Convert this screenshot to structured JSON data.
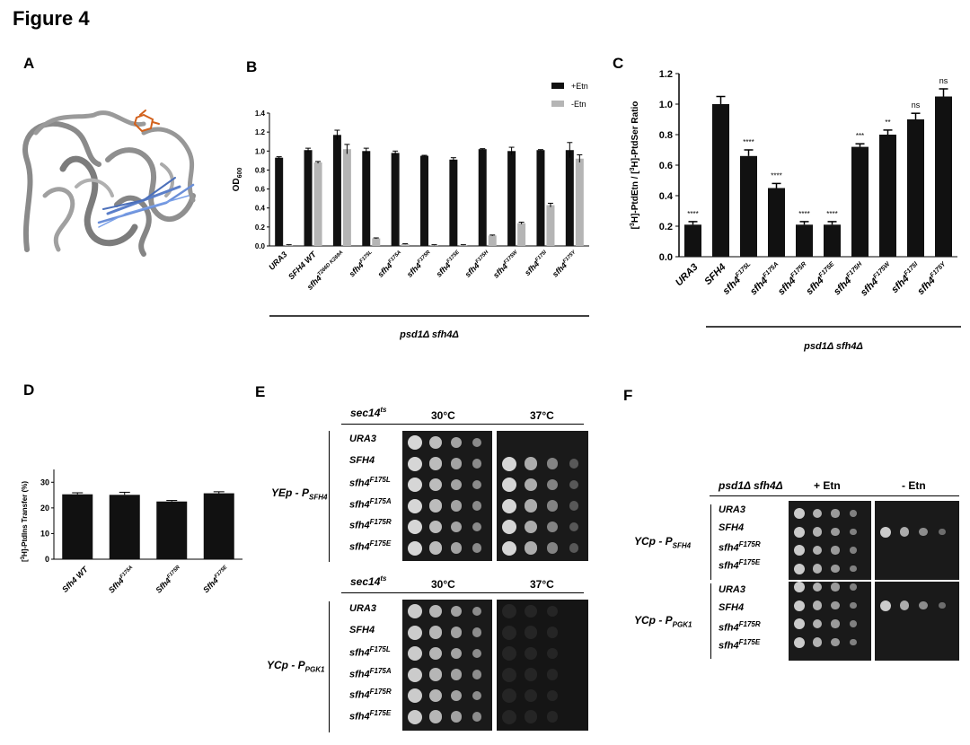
{
  "figure": {
    "title": "Figure 4"
  },
  "panels": {
    "A": {
      "letter": "A"
    },
    "B": {
      "letter": "B",
      "ylabel_main": "OD",
      "ylabel_sub": "600",
      "legend": [
        "+Etn",
        "-Etn"
      ],
      "tick_labels": [
        "0.0",
        "0.2",
        "0.4",
        "0.6",
        "0.8",
        "1.0",
        "1.2",
        "1.4"
      ],
      "strain_label": "psd1Δ sfh4Δ"
    },
    "C": {
      "letter": "C",
      "ylabel_part1": "[",
      "ylabel_sup1": "3",
      "ylabel_part2": "H]-PtdEtn / [",
      "ylabel_sup2": "3",
      "ylabel_part3": "H]-PtdSer Ratio",
      "tick_labels": [
        "0.0",
        "0.2",
        "0.4",
        "0.6",
        "0.8",
        "1.0",
        "1.2"
      ],
      "strain_label": "psd1Δ sfh4Δ"
    },
    "D": {
      "letter": "D",
      "ylabel_pre": "[",
      "ylabel_sup": "3",
      "ylabel_post": "H]-PtdIns Transfer (%)",
      "tick_labels": [
        "0",
        "10",
        "20",
        "30"
      ]
    },
    "E": {
      "letter": "E",
      "header_strain": "sec14",
      "header_strain_sup": "ts",
      "temp_30": "30°C",
      "temp_37": "37°C",
      "group1": {
        "label": "YEp - P",
        "sub": "SFH4",
        "rows": [
          {
            "base": "URA3",
            "sup": ""
          },
          {
            "base": "SFH4",
            "sup": ""
          },
          {
            "base": "sfh4",
            "sup": "F175L"
          },
          {
            "base": "sfh4",
            "sup": "F175A"
          },
          {
            "base": "sfh4",
            "sup": "F175R"
          },
          {
            "base": "sfh4",
            "sup": "F175E"
          }
        ]
      },
      "group2": {
        "label": "YCp - P",
        "sub": "PGK1",
        "rows": [
          {
            "base": "URA3",
            "sup": ""
          },
          {
            "base": "SFH4",
            "sup": ""
          },
          {
            "base": "sfh4",
            "sup": "F175L"
          },
          {
            "base": "sfh4",
            "sup": "F175A"
          },
          {
            "base": "sfh4",
            "sup": "F175R"
          },
          {
            "base": "sfh4",
            "sup": "F175E"
          }
        ]
      }
    },
    "F": {
      "letter": "F",
      "header_strain": "psd1Δ sfh4Δ",
      "col_plus": "+ Etn",
      "col_minus": "- Etn",
      "group1": {
        "label": "YCp - P",
        "sub": "SFH4",
        "rows": [
          {
            "base": "URA3",
            "sup": ""
          },
          {
            "base": "SFH4",
            "sup": ""
          },
          {
            "base": "sfh4",
            "sup": "F175R"
          },
          {
            "base": "sfh4",
            "sup": "F175E"
          }
        ]
      },
      "group2": {
        "label": "YCp - P",
        "sub": "PGK1",
        "rows": [
          {
            "base": "URA3",
            "sup": ""
          },
          {
            "base": "SFH4",
            "sup": ""
          },
          {
            "base": "sfh4",
            "sup": "F175R"
          },
          {
            "base": "sfh4",
            "sup": "F175E"
          }
        ]
      }
    }
  },
  "chart_data": [
    {
      "panel": "B",
      "type": "bar",
      "ylabel": "OD600",
      "ylim": [
        0,
        1.4
      ],
      "legend_position": "top-right",
      "categories": [
        {
          "base": "URA3",
          "sup": ""
        },
        {
          "base": "SFH4 WT",
          "sup": ""
        },
        {
          "base": "sfh4",
          "sup": "T266D K269A"
        },
        {
          "base": "sfh4",
          "sup": "F175L"
        },
        {
          "base": "sfh4",
          "sup": "F175A"
        },
        {
          "base": "sfh4",
          "sup": "F175R"
        },
        {
          "base": "sfh4",
          "sup": "F175E"
        },
        {
          "base": "sfh4",
          "sup": "F175H"
        },
        {
          "base": "sfh4",
          "sup": "F175W"
        },
        {
          "base": "sfh4",
          "sup": "F175I"
        },
        {
          "base": "sfh4",
          "sup": "F175Y"
        }
      ],
      "series": [
        {
          "name": "+Etn",
          "color": "#111111",
          "values": [
            0.93,
            1.01,
            1.17,
            1.0,
            0.98,
            0.95,
            0.91,
            1.02,
            1.0,
            1.01,
            1.01
          ],
          "errors": [
            0.01,
            0.02,
            0.05,
            0.03,
            0.02,
            0.005,
            0.02,
            0.005,
            0.04,
            0.005,
            0.08
          ]
        },
        {
          "name": "-Etn",
          "color": "#b5b5b5",
          "values": [
            0.01,
            0.88,
            1.02,
            0.08,
            0.02,
            0.01,
            0.01,
            0.11,
            0.24,
            0.43,
            0.92
          ],
          "errors": [
            0.003,
            0.01,
            0.05,
            0.005,
            0.003,
            0.003,
            0.003,
            0.005,
            0.01,
            0.02,
            0.04
          ]
        }
      ]
    },
    {
      "panel": "C",
      "type": "bar",
      "ylabel": "[3H]-PtdEtn / [3H]-PtdSer Ratio",
      "ylim": [
        0,
        1.2
      ],
      "categories": [
        {
          "base": "URA3",
          "sup": ""
        },
        {
          "base": "SFH4",
          "sup": ""
        },
        {
          "base": "sfh4",
          "sup": "F175L"
        },
        {
          "base": "sfh4",
          "sup": "F175A"
        },
        {
          "base": "sfh4",
          "sup": "F175R"
        },
        {
          "base": "sfh4",
          "sup": "F175E"
        },
        {
          "base": "sfh4",
          "sup": "F175H"
        },
        {
          "base": "sfh4",
          "sup": "F175W"
        },
        {
          "base": "sfh4",
          "sup": "F175I"
        },
        {
          "base": "sfh4",
          "sup": "F175Y"
        }
      ],
      "values": [
        0.21,
        1.0,
        0.66,
        0.45,
        0.21,
        0.21,
        0.72,
        0.8,
        0.9,
        1.05
      ],
      "errors": [
        0.02,
        0.05,
        0.04,
        0.03,
        0.02,
        0.02,
        0.02,
        0.03,
        0.04,
        0.05
      ],
      "annotations": [
        "****",
        "",
        "****",
        "****",
        "****",
        "****",
        "***",
        "**",
        "ns",
        "ns"
      ],
      "color": "#111111"
    },
    {
      "panel": "D",
      "type": "bar",
      "ylabel": "[3H]-PtdIns Transfer (%)",
      "ylim": [
        0,
        35
      ],
      "categories": [
        {
          "base": "Sfh4 WT",
          "sup": ""
        },
        {
          "base": "Sfh4",
          "sup": "F175A"
        },
        {
          "base": "Sfh4",
          "sup": "F175R"
        },
        {
          "base": "Sfh4",
          "sup": "F175E"
        }
      ],
      "values": [
        25.3,
        25.1,
        22.5,
        25.7
      ],
      "errors": [
        0.6,
        1.0,
        0.4,
        0.6
      ],
      "color": "#111111"
    }
  ]
}
